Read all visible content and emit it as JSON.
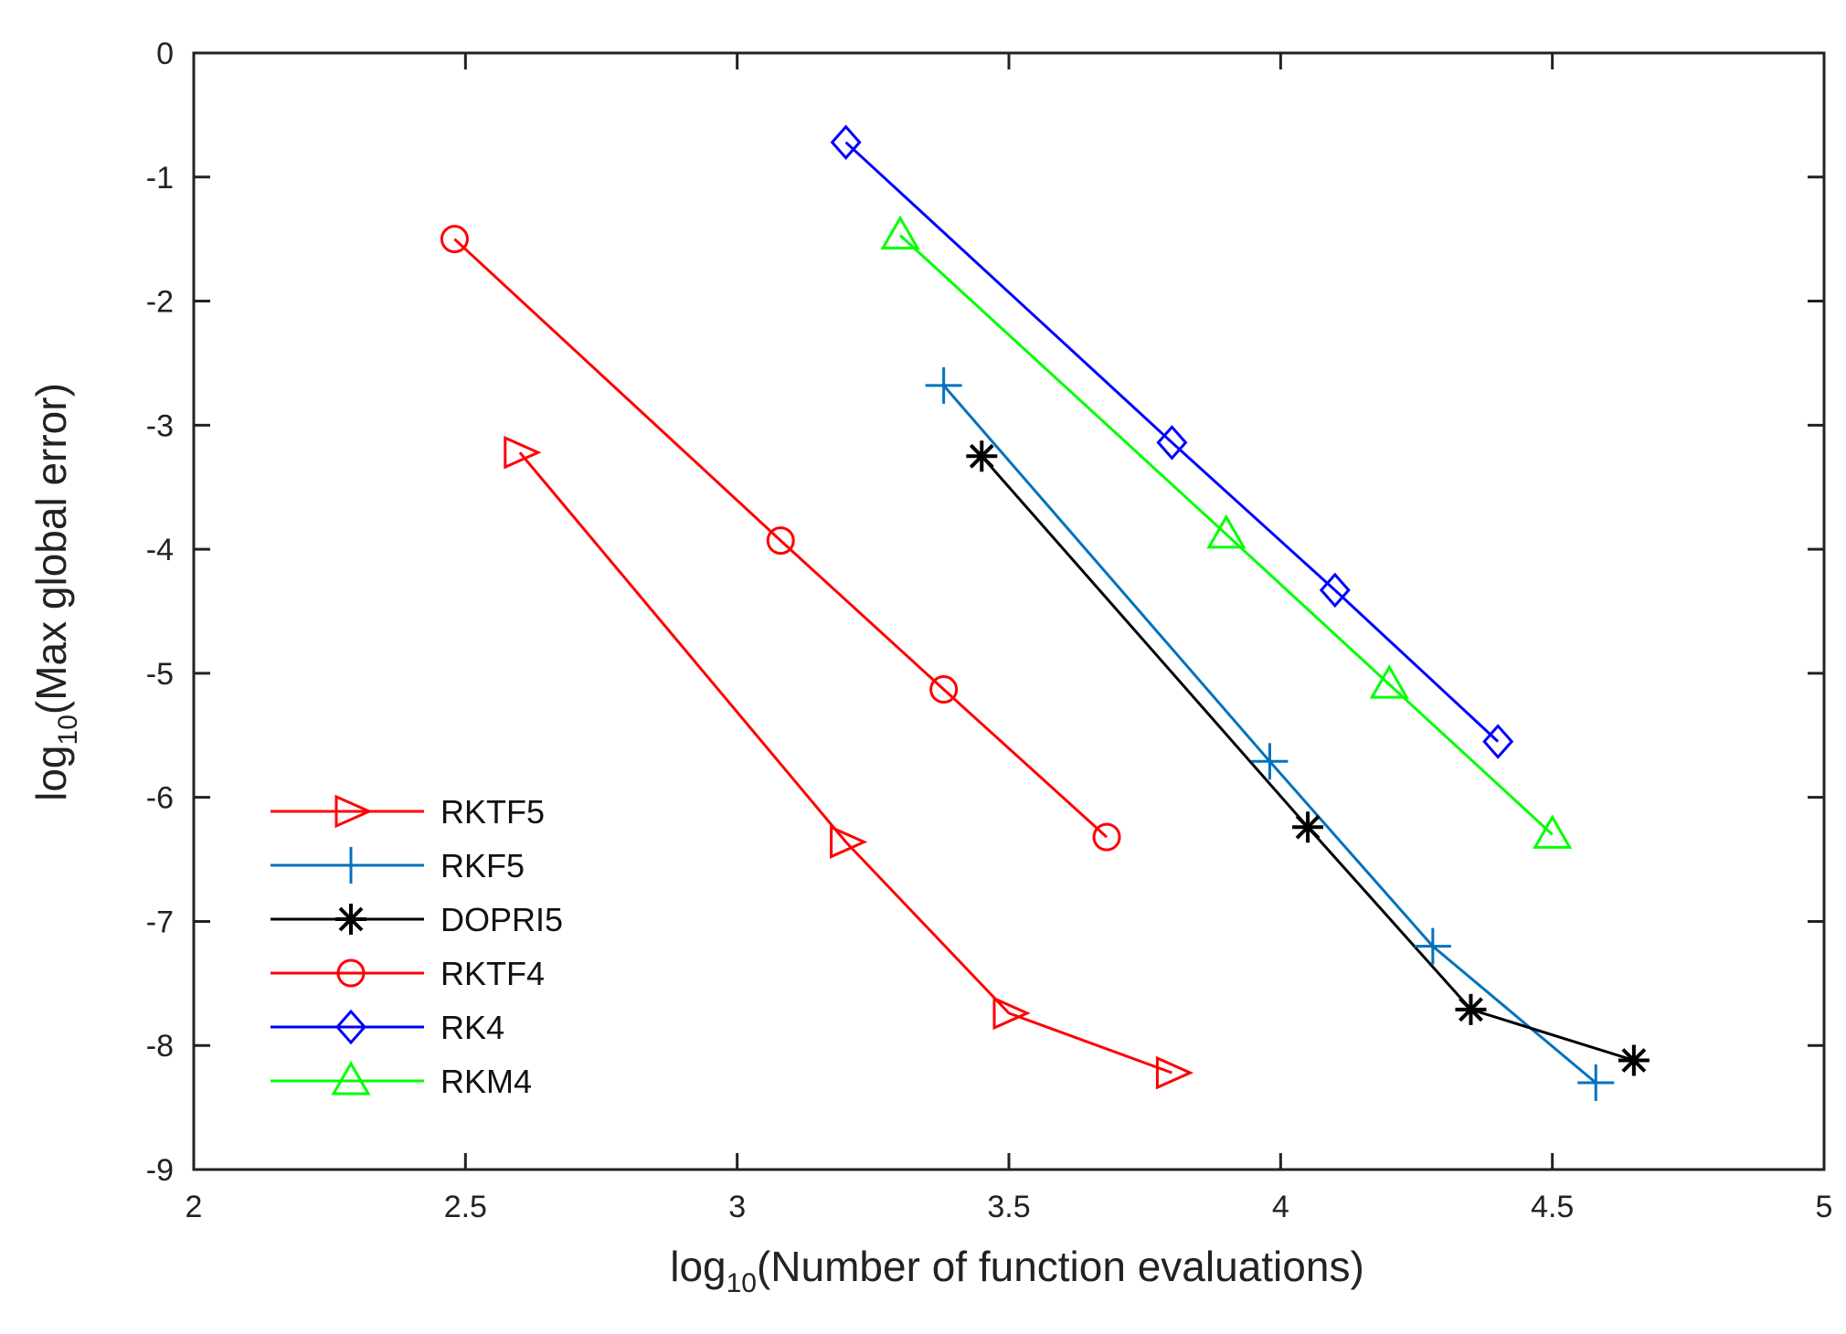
{
  "chart_data": {
    "type": "line",
    "title": "",
    "xlabel": {
      "prefix": "log",
      "sub": "10",
      "suffix": "(Number of function evaluations)"
    },
    "ylabel": {
      "prefix": "log",
      "sub": "10",
      "suffix": "(Max global error)"
    },
    "xlim": [
      2,
      5
    ],
    "ylim": [
      -9,
      0
    ],
    "xticks": [
      2,
      2.5,
      3,
      3.5,
      4,
      4.5,
      5
    ],
    "xtick_labels": [
      "2",
      "2.5",
      "3",
      "3.5",
      "4",
      "4.5",
      "5"
    ],
    "yticks": [
      0,
      -1,
      -2,
      -3,
      -4,
      -5,
      -6,
      -7,
      -8,
      -9
    ],
    "ytick_labels": [
      "0",
      "-1",
      "-2",
      "-3",
      "-4",
      "-5",
      "-6",
      "-7",
      "-8",
      "-9"
    ],
    "grid": false,
    "legend_position": "bottom-left",
    "series": [
      {
        "name": " RKTF5",
        "color": "#ff0000",
        "marker": "triangle-right",
        "x": [
          2.6,
          3.2,
          3.5,
          3.8
        ],
        "y": [
          -3.22,
          -6.36,
          -7.74,
          -8.22
        ]
      },
      {
        "name": "RKF5",
        "color": "#0072bd",
        "marker": "plus",
        "x": [
          3.38,
          3.98,
          4.28,
          4.58
        ],
        "y": [
          -2.68,
          -5.71,
          -7.2,
          -8.3
        ]
      },
      {
        "name": "DOPRI5",
        "color": "#000000",
        "marker": "asterisk",
        "x": [
          3.45,
          4.05,
          4.35,
          4.65
        ],
        "y": [
          -3.25,
          -6.24,
          -7.71,
          -8.12
        ]
      },
      {
        "name": "RKTF4",
        "color": "#ff0000",
        "marker": "circle",
        "x": [
          2.48,
          3.08,
          3.38,
          3.68
        ],
        "y": [
          -1.5,
          -3.93,
          -5.13,
          -6.32
        ]
      },
      {
        "name": "RK4",
        "color": "#0000ff",
        "marker": "diamond",
        "x": [
          3.2,
          3.8,
          4.1,
          4.4
        ],
        "y": [
          -0.72,
          -3.14,
          -4.33,
          -5.55
        ]
      },
      {
        "name": "RKM4",
        "color": "#00ff00",
        "marker": "triangle-up",
        "x": [
          3.3,
          3.9,
          4.2,
          4.5
        ],
        "y": [
          -1.47,
          -3.88,
          -5.09,
          -6.3
        ]
      }
    ]
  }
}
